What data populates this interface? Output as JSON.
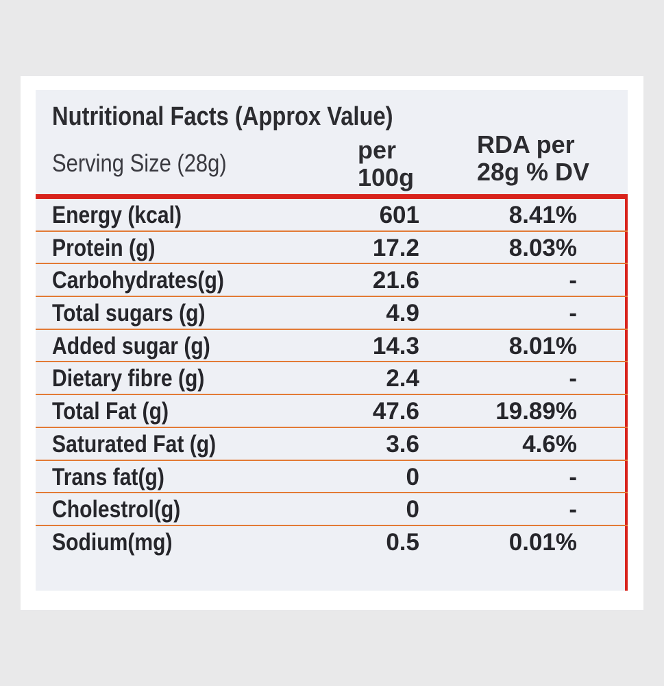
{
  "header": {
    "title": "Nutritional Facts (Approx Value)",
    "serving_size": "Serving Size (28g)",
    "col_per_line1": "per",
    "col_per_line2": "100g",
    "col_rda_line1": "RDA per",
    "col_rda_line2": "28g % DV"
  },
  "colors": {
    "accent_red": "#d8231c",
    "row_rule_orange": "#e27a35",
    "panel_bg": "#eef0f5"
  },
  "rows": [
    {
      "nutrient": "Energy (kcal)",
      "per_100g": "601",
      "rda": "8.41%"
    },
    {
      "nutrient": "Protein  (g)",
      "per_100g": "17.2",
      "rda": "8.03%"
    },
    {
      "nutrient": "Carbohydrates(g)",
      "per_100g": "21.6",
      "rda": "-"
    },
    {
      "nutrient": "Total sugars (g)",
      "per_100g": "4.9",
      "rda": "-"
    },
    {
      "nutrient": "Added sugar (g)",
      "per_100g": "14.3",
      "rda": "8.01%"
    },
    {
      "nutrient": "Dietary fibre (g)",
      "per_100g": "2.4",
      "rda": "-"
    },
    {
      "nutrient": "Total Fat  (g)",
      "per_100g": "47.6",
      "rda": "19.89%"
    },
    {
      "nutrient": "Saturated Fat (g)",
      "per_100g": "3.6",
      "rda": "4.6%"
    },
    {
      "nutrient": "Trans fat(g)",
      "per_100g": "0",
      "rda": "-"
    },
    {
      "nutrient": "Cholestrol(g)",
      "per_100g": "0",
      "rda": "-"
    },
    {
      "nutrient": "Sodium(mg)",
      "per_100g": "0.5",
      "rda": "0.01%"
    }
  ]
}
